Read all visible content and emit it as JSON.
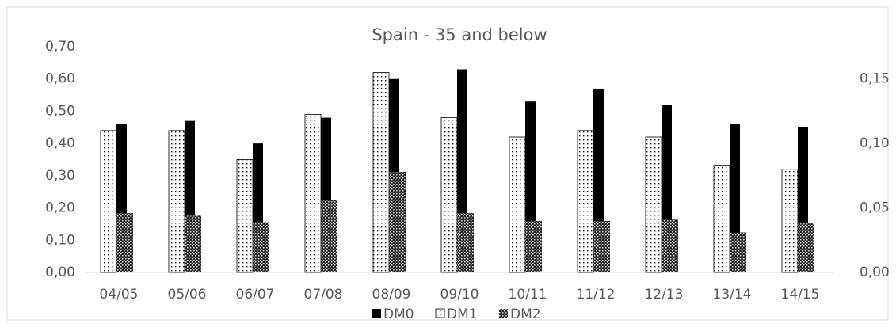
{
  "chart_data": {
    "type": "bar",
    "title": "Spain - 35 and below",
    "categories": [
      "04/05",
      "05/06",
      "06/07",
      "07/08",
      "08/09",
      "09/10",
      "10/11",
      "11/12",
      "12/13",
      "13/14",
      "14/15"
    ],
    "series": [
      {
        "name": "DM0",
        "color": "#000000",
        "pattern": "solid",
        "values": [
          0.46,
          0.47,
          0.4,
          0.48,
          0.6,
          0.63,
          0.53,
          0.57,
          0.52,
          0.46,
          0.45
        ]
      },
      {
        "name": "DM1",
        "color": "#000000",
        "pattern": "dots",
        "values": [
          0.44,
          0.44,
          0.35,
          0.49,
          0.62,
          0.48,
          0.42,
          0.44,
          0.42,
          0.33,
          0.32
        ]
      },
      {
        "name": "DM2",
        "color": "#000000",
        "pattern": "crosshatch",
        "axis": "y2",
        "values": [
          0.046,
          0.044,
          0.039,
          0.056,
          0.078,
          0.046,
          0.04,
          0.04,
          0.041,
          0.031,
          0.038
        ]
      }
    ],
    "ylim": [
      0,
      0.7
    ],
    "yticks": [
      {
        "value": 0,
        "label": "0,00"
      },
      {
        "value": 0.1,
        "label": "0,10"
      },
      {
        "value": 0.2,
        "label": "0,20"
      },
      {
        "value": 0.3,
        "label": "0,30"
      },
      {
        "value": 0.4,
        "label": "0,40"
      },
      {
        "value": 0.5,
        "label": "0,50"
      },
      {
        "value": 0.6,
        "label": "0,60"
      },
      {
        "value": 0.7,
        "label": "0,70"
      }
    ],
    "y2lim": [
      0,
      0.175
    ],
    "y2ticks": [
      {
        "value": 0,
        "label": "0,00"
      },
      {
        "value": 0.05,
        "label": "0,05"
      },
      {
        "value": 0.1,
        "label": "0,10"
      },
      {
        "value": 0.15,
        "label": "0,15"
      }
    ],
    "grid": false,
    "legend": "bottom"
  }
}
